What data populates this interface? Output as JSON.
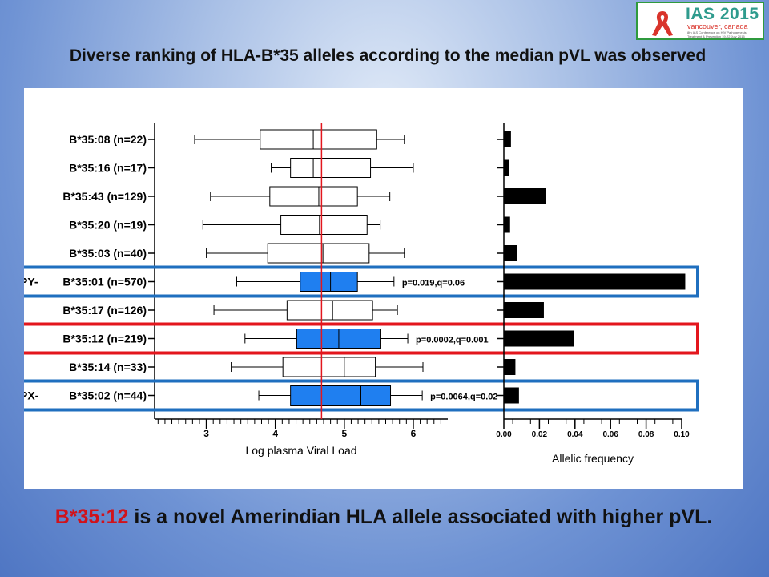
{
  "slide": {
    "title": "Diverse ranking of HLA-B*35 alleles according to the median pVL was observed",
    "conclusion_allele": "B*35:12",
    "conclusion_text": " is a novel Amerindian HLA allele associated with higher pVL."
  },
  "logo": {
    "name": "IAS 2015",
    "location": "vancouver, canada",
    "subtitle": "8th IAS Conference on HIV Pathogenesis, Treatment & Prevention 19-22 July 2015",
    "colors": {
      "ribbon": "#d9342b",
      "text": "#2e9b8d",
      "border": "#2f9a3d"
    }
  },
  "chart_data": {
    "type": "boxplot_with_bar",
    "categories": [
      "B*35:08 (n=22)",
      "B*35:16 (n=17)",
      "B*35:43 (n=129)",
      "B*35:20 (n=19)",
      "B*35:03 (n=40)",
      "B*35:01 (n=570)",
      "B*35:17 (n=126)",
      "B*35:12 (n=219)",
      "B*35:14 (n=33)",
      "B*35:02 (n=44)"
    ],
    "row_prefixes": [
      "",
      "",
      "",
      "",
      "",
      "PY-",
      "",
      "",
      "",
      "PX-"
    ],
    "box_plot": {
      "xlabel": "Log plasma Viral Load",
      "xlim": [
        2.25,
        6.5
      ],
      "xticks": [
        3,
        4,
        5,
        6
      ],
      "reference_line": 4.67,
      "series": [
        {
          "whisker_low": 2.83,
          "q1": 3.78,
          "median": 4.55,
          "q3": 5.47,
          "whisker_high": 5.87,
          "highlight": false
        },
        {
          "whisker_low": 3.94,
          "q1": 4.22,
          "median": 4.55,
          "q3": 5.38,
          "whisker_high": 6.0,
          "highlight": false
        },
        {
          "whisker_low": 3.06,
          "q1": 3.92,
          "median": 4.63,
          "q3": 5.19,
          "whisker_high": 5.66,
          "highlight": false
        },
        {
          "whisker_low": 2.95,
          "q1": 4.08,
          "median": 4.64,
          "q3": 5.33,
          "whisker_high": 5.52,
          "highlight": false
        },
        {
          "whisker_low": 3.0,
          "q1": 3.89,
          "median": 4.69,
          "q3": 5.36,
          "whisker_high": 5.87,
          "highlight": false
        },
        {
          "whisker_low": 3.44,
          "q1": 4.36,
          "median": 4.8,
          "q3": 5.19,
          "whisker_high": 5.72,
          "highlight": true
        },
        {
          "whisker_low": 3.11,
          "q1": 4.17,
          "median": 4.83,
          "q3": 5.41,
          "whisker_high": 5.77,
          "highlight": false
        },
        {
          "whisker_low": 3.56,
          "q1": 4.31,
          "median": 4.92,
          "q3": 5.53,
          "whisker_high": 5.92,
          "highlight": true
        },
        {
          "whisker_low": 3.36,
          "q1": 4.11,
          "median": 5.0,
          "q3": 5.45,
          "whisker_high": 6.14,
          "highlight": false
        },
        {
          "whisker_low": 3.76,
          "q1": 4.22,
          "median": 5.24,
          "q3": 5.67,
          "whisker_high": 6.13,
          "highlight": true
        }
      ],
      "annotations": [
        {
          "row": 5,
          "text": "p=0.019,q=0.06"
        },
        {
          "row": 7,
          "text": "p=0.0002,q=0.001"
        },
        {
          "row": 9,
          "text": "p=0.0064,q=0.02"
        }
      ]
    },
    "bar_plot": {
      "xlabel": "Allelic frequency",
      "xlim": [
        0,
        0.1
      ],
      "xticks": [
        "0.00",
        "0.02",
        "0.04",
        "0.06",
        "0.08",
        "0.10"
      ],
      "values": [
        0.004,
        0.003,
        0.0235,
        0.0035,
        0.0075,
        0.102,
        0.0225,
        0.0395,
        0.0065,
        0.0085
      ]
    },
    "highlight_frames": [
      {
        "row": 5,
        "color": "#1f6fbf"
      },
      {
        "row": 7,
        "color": "#e3161d"
      },
      {
        "row": 9,
        "color": "#1f6fbf"
      }
    ],
    "colors": {
      "highlight_box": "#1f7ff0",
      "reference_line": "#e3161d",
      "bars": "#000000"
    }
  }
}
